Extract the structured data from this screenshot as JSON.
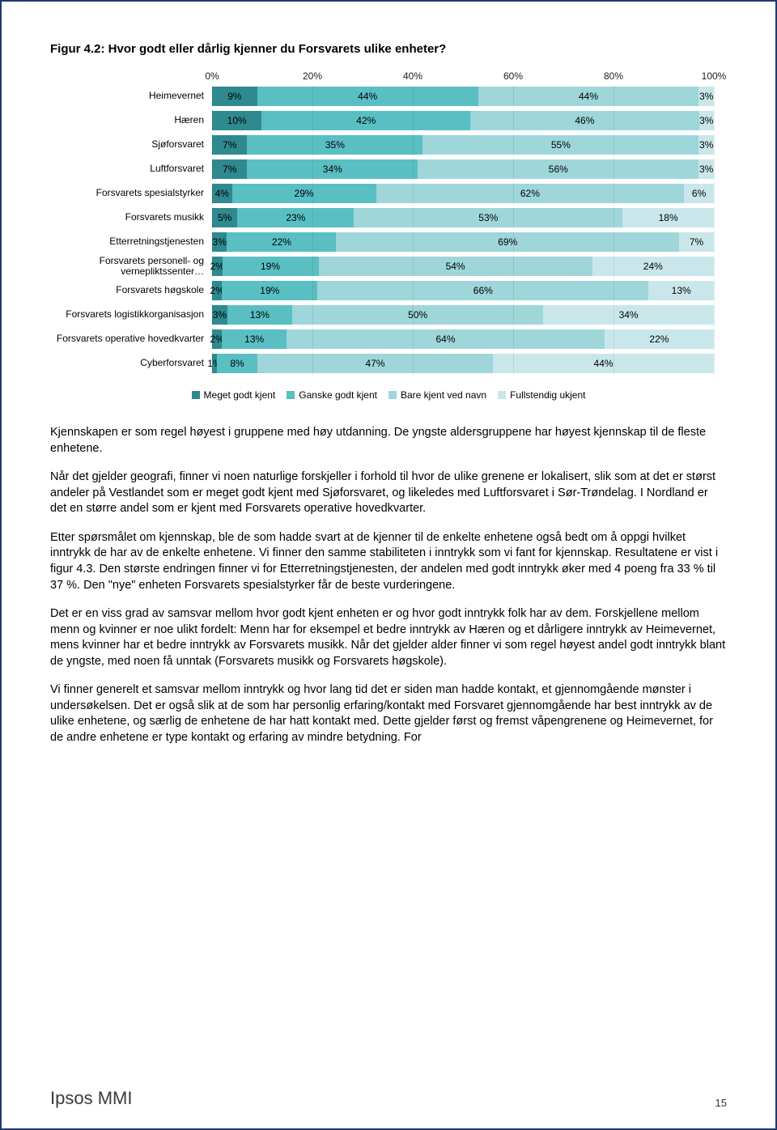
{
  "figure": {
    "title": "Figur 4.2: Hvor godt eller dårlig kjenner du Forsvarets ulike enheter?",
    "xlabels": [
      "0%",
      "20%",
      "40%",
      "60%",
      "80%",
      "100%"
    ],
    "xpositions": [
      0,
      20,
      40,
      60,
      80,
      100
    ],
    "series_colors": [
      "#2f8a8f",
      "#59bfc3",
      "#9ed6da",
      "#c9e7ea"
    ],
    "legend": [
      "Meget godt kjent",
      "Ganske godt kjent",
      "Bare kjent ved navn",
      "Fullstendig ukjent"
    ],
    "rows": [
      {
        "label": "Heimevernet",
        "values": [
          9,
          44,
          44,
          3
        ],
        "vlabels": [
          "9%",
          "44%",
          "44%",
          "3%"
        ]
      },
      {
        "label": "Hæren",
        "values": [
          10,
          42,
          46,
          3
        ],
        "vlabels": [
          "10%",
          "42%",
          "46%",
          "3%"
        ]
      },
      {
        "label": "Sjøforsvaret",
        "values": [
          7,
          35,
          55,
          3
        ],
        "vlabels": [
          "7%",
          "35%",
          "55%",
          "3%"
        ]
      },
      {
        "label": "Luftforsvaret",
        "values": [
          7,
          34,
          56,
          3
        ],
        "vlabels": [
          "7%",
          "34%",
          "56%",
          "3%"
        ]
      },
      {
        "label": "Forsvarets spesialstyrker",
        "values": [
          4,
          29,
          62,
          6
        ],
        "vlabels": [
          "4%",
          "29%",
          "62%",
          "6%"
        ]
      },
      {
        "label": "Forsvarets musikk",
        "values": [
          5,
          23,
          53,
          18
        ],
        "vlabels": [
          "5%",
          "23%",
          "53%",
          "18%"
        ]
      },
      {
        "label": "Etterretningstjenesten",
        "values": [
          3,
          22,
          69,
          7
        ],
        "vlabels": [
          "3%",
          "22%",
          "69%",
          "7%"
        ]
      },
      {
        "label": "Forsvarets personell- og vernepliktssenter…",
        "values": [
          2,
          19,
          54,
          24
        ],
        "vlabels": [
          "2%",
          "19%",
          "54%",
          "24%"
        ]
      },
      {
        "label": "Forsvarets høgskole",
        "values": [
          2,
          19,
          66,
          13
        ],
        "vlabels": [
          "2%",
          "19%",
          "66%",
          "13%"
        ]
      },
      {
        "label": "Forsvarets logistikkorganisasjon",
        "values": [
          3,
          13,
          50,
          34
        ],
        "vlabels": [
          "3%",
          "13%",
          "50%",
          "34%"
        ]
      },
      {
        "label": "Forsvarets operative hovedkvarter",
        "values": [
          2,
          13,
          64,
          22
        ],
        "vlabels": [
          "2%",
          "13%",
          "64%",
          "22%"
        ]
      },
      {
        "label": "Cyberforsvaret",
        "values": [
          1,
          8,
          47,
          44
        ],
        "vlabels": [
          "1%",
          "8%",
          "47%",
          "44%"
        ]
      }
    ]
  },
  "paragraphs": [
    "Kjennskapen er som regel høyest i gruppene med høy utdanning. De yngste aldersgruppene har høyest kjennskap til de fleste enhetene.",
    "Når det gjelder geografi, finner vi noen naturlige forskjeller i forhold til hvor de ulike grenene er lokalisert, slik som at det er størst andeler på Vestlandet som er meget godt kjent med Sjøforsvaret, og likeledes med Luftforsvaret i Sør-Trøndelag. I Nordland er det en større andel som er kjent med Forsvarets operative hovedkvarter.",
    "Etter spørsmålet om kjennskap, ble de som hadde svart at de kjenner til de enkelte enhetene også bedt om å oppgi hvilket inntrykk de har av de enkelte enhetene. Vi finner den samme stabiliteten i inntrykk som vi fant for kjennskap. Resultatene er vist i figur 4.3. Den største endringen finner vi for Etterretningstjenesten, der andelen med godt inntrykk øker med 4 poeng fra 33 % til 37 %. Den \"nye\" enheten Forsvarets spesialstyrker får de beste vurderingene.",
    "Det er en viss grad av samsvar mellom hvor godt kjent enheten er og hvor godt inntrykk folk har av dem. Forskjellene mellom menn og kvinner er noe ulikt fordelt: Menn har for eksempel et bedre inntrykk av Hæren og et dårligere inntrykk av Heimevernet, mens kvinner har et bedre inntrykk av Forsvarets musikk. Når det gjelder alder finner vi som regel høyest andel godt inntrykk blant de yngste, med noen få unntak (Forsvarets musikk og Forsvarets høgskole).",
    "Vi finner generelt et samsvar mellom inntrykk og hvor lang tid det er siden man hadde kontakt, et gjennomgående mønster i undersøkelsen. Det er også slik at de som har personlig erfaring/kontakt med Forsvaret gjennomgående har best inntrykk av de ulike enhetene, og særlig de enhetene de har hatt kontakt med. Dette gjelder først og fremst våpengrenene og Heimevernet, for de andre enhetene er type kontakt og erfaring av mindre betydning. For"
  ],
  "footer": {
    "brand": "Ipsos MMI",
    "page": "15"
  }
}
